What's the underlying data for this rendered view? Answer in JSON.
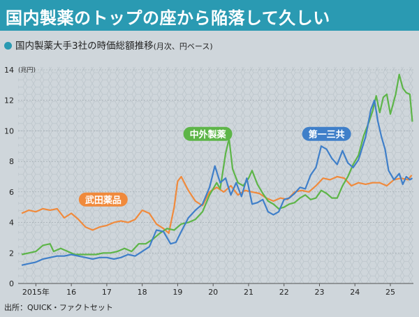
{
  "header": {
    "title": "国内製薬のトップの座から陥落して久しい",
    "subtitle": "国内製薬大手3社の時価総額推移",
    "subtitle_note": "(月次、円ベース)"
  },
  "source": "出所：QUICK・ファクトセット",
  "colors": {
    "accent": "#2a9ab2",
    "takeda": "#f08a3c",
    "chugai": "#5db548",
    "daiichi": "#3f7fc9",
    "label_text": "#ffffff"
  },
  "chart_data": {
    "type": "line",
    "ylabel": "(兆円)",
    "ylim": [
      0,
      14
    ],
    "xlim": [
      2014.5,
      2025.65
    ],
    "y_ticks": [
      0,
      2,
      4,
      6,
      8,
      10,
      12,
      14
    ],
    "x_ticks": [
      {
        "value": 2015,
        "label": "2015年"
      },
      {
        "value": 2016,
        "label": "16"
      },
      {
        "value": 2017,
        "label": "17"
      },
      {
        "value": 2018,
        "label": "18"
      },
      {
        "value": 2019,
        "label": "19"
      },
      {
        "value": 2020,
        "label": "20"
      },
      {
        "value": 2021,
        "label": "21"
      },
      {
        "value": 2022,
        "label": "22"
      },
      {
        "value": 2023,
        "label": "23"
      },
      {
        "value": 2024,
        "label": "24"
      },
      {
        "value": 2025,
        "label": "25"
      }
    ],
    "series": [
      {
        "name": "武田薬品",
        "color": "#f08a3c",
        "label_pos": [
          2016.9,
          5.5
        ],
        "points": [
          [
            2014.6,
            4.6
          ],
          [
            2014.8,
            4.8
          ],
          [
            2015.0,
            4.7
          ],
          [
            2015.2,
            4.9
          ],
          [
            2015.4,
            4.8
          ],
          [
            2015.6,
            4.9
          ],
          [
            2015.8,
            4.3
          ],
          [
            2016.0,
            4.6
          ],
          [
            2016.2,
            4.2
          ],
          [
            2016.4,
            3.7
          ],
          [
            2016.6,
            3.5
          ],
          [
            2016.8,
            3.7
          ],
          [
            2017.0,
            3.8
          ],
          [
            2017.2,
            4.0
          ],
          [
            2017.4,
            4.1
          ],
          [
            2017.6,
            4.0
          ],
          [
            2017.8,
            4.2
          ],
          [
            2018.0,
            4.8
          ],
          [
            2018.2,
            4.6
          ],
          [
            2018.4,
            3.9
          ],
          [
            2018.6,
            3.6
          ],
          [
            2018.75,
            3.3
          ],
          [
            2018.9,
            5.0
          ],
          [
            2019.0,
            6.7
          ],
          [
            2019.1,
            7.0
          ],
          [
            2019.3,
            6.1
          ],
          [
            2019.5,
            5.4
          ],
          [
            2019.7,
            5.1
          ],
          [
            2019.9,
            6.0
          ],
          [
            2020.1,
            6.3
          ],
          [
            2020.3,
            6.0
          ],
          [
            2020.5,
            6.4
          ],
          [
            2020.7,
            5.8
          ],
          [
            2020.9,
            6.1
          ],
          [
            2021.1,
            6.0
          ],
          [
            2021.3,
            5.9
          ],
          [
            2021.5,
            5.6
          ],
          [
            2021.7,
            5.4
          ],
          [
            2021.9,
            5.6
          ],
          [
            2022.1,
            5.5
          ],
          [
            2022.3,
            6.0
          ],
          [
            2022.5,
            6.1
          ],
          [
            2022.7,
            6.0
          ],
          [
            2022.9,
            6.4
          ],
          [
            2023.1,
            6.9
          ],
          [
            2023.3,
            6.8
          ],
          [
            2023.5,
            7.0
          ],
          [
            2023.7,
            6.9
          ],
          [
            2023.9,
            6.4
          ],
          [
            2024.1,
            6.6
          ],
          [
            2024.3,
            6.5
          ],
          [
            2024.5,
            6.6
          ],
          [
            2024.7,
            6.6
          ],
          [
            2024.9,
            6.4
          ],
          [
            2025.1,
            6.8
          ],
          [
            2025.3,
            6.9
          ],
          [
            2025.5,
            6.8
          ],
          [
            2025.6,
            7.1
          ]
        ]
      },
      {
        "name": "中外製薬",
        "color": "#5db548",
        "label_pos": [
          2019.85,
          9.8
        ],
        "points": [
          [
            2014.6,
            1.9
          ],
          [
            2014.8,
            2.0
          ],
          [
            2015.0,
            2.1
          ],
          [
            2015.2,
            2.5
          ],
          [
            2015.4,
            2.6
          ],
          [
            2015.5,
            2.1
          ],
          [
            2015.7,
            2.3
          ],
          [
            2015.9,
            2.1
          ],
          [
            2016.1,
            1.9
          ],
          [
            2016.3,
            1.9
          ],
          [
            2016.5,
            1.9
          ],
          [
            2016.7,
            1.9
          ],
          [
            2016.9,
            2.0
          ],
          [
            2017.1,
            2.0
          ],
          [
            2017.3,
            2.1
          ],
          [
            2017.5,
            2.3
          ],
          [
            2017.7,
            2.1
          ],
          [
            2017.9,
            2.6
          ],
          [
            2018.1,
            2.6
          ],
          [
            2018.3,
            2.9
          ],
          [
            2018.5,
            3.3
          ],
          [
            2018.7,
            3.6
          ],
          [
            2018.9,
            3.5
          ],
          [
            2019.1,
            3.9
          ],
          [
            2019.3,
            4.0
          ],
          [
            2019.5,
            4.2
          ],
          [
            2019.7,
            4.7
          ],
          [
            2019.9,
            5.8
          ],
          [
            2020.1,
            6.6
          ],
          [
            2020.2,
            6.2
          ],
          [
            2020.35,
            8.5
          ],
          [
            2020.45,
            9.5
          ],
          [
            2020.55,
            7.5
          ],
          [
            2020.7,
            6.6
          ],
          [
            2020.85,
            6.4
          ],
          [
            2021.0,
            6.9
          ],
          [
            2021.1,
            7.4
          ],
          [
            2021.25,
            6.5
          ],
          [
            2021.4,
            5.9
          ],
          [
            2021.55,
            5.4
          ],
          [
            2021.7,
            5.2
          ],
          [
            2021.85,
            4.9
          ],
          [
            2022.0,
            5.0
          ],
          [
            2022.15,
            5.2
          ],
          [
            2022.3,
            5.3
          ],
          [
            2022.45,
            5.6
          ],
          [
            2022.6,
            5.8
          ],
          [
            2022.75,
            5.5
          ],
          [
            2022.9,
            5.6
          ],
          [
            2023.05,
            6.1
          ],
          [
            2023.2,
            5.9
          ],
          [
            2023.35,
            5.6
          ],
          [
            2023.5,
            5.6
          ],
          [
            2023.65,
            6.4
          ],
          [
            2023.8,
            7.0
          ],
          [
            2023.95,
            7.8
          ],
          [
            2024.1,
            8.4
          ],
          [
            2024.25,
            9.7
          ],
          [
            2024.4,
            10.6
          ],
          [
            2024.5,
            11.3
          ],
          [
            2024.6,
            12.3
          ],
          [
            2024.7,
            11.2
          ],
          [
            2024.8,
            12.2
          ],
          [
            2024.9,
            12.4
          ],
          [
            2025.0,
            11.1
          ],
          [
            2025.15,
            12.4
          ],
          [
            2025.25,
            13.7
          ],
          [
            2025.35,
            12.8
          ],
          [
            2025.45,
            12.5
          ],
          [
            2025.55,
            12.4
          ],
          [
            2025.62,
            10.6
          ]
        ]
      },
      {
        "name": "第一三共",
        "color": "#3f7fc9",
        "label_pos": [
          2023.2,
          9.8
        ],
        "points": [
          [
            2014.6,
            1.2
          ],
          [
            2014.8,
            1.3
          ],
          [
            2015.0,
            1.4
          ],
          [
            2015.2,
            1.6
          ],
          [
            2015.4,
            1.7
          ],
          [
            2015.6,
            1.8
          ],
          [
            2015.8,
            1.8
          ],
          [
            2016.0,
            1.9
          ],
          [
            2016.2,
            1.8
          ],
          [
            2016.4,
            1.7
          ],
          [
            2016.6,
            1.6
          ],
          [
            2016.8,
            1.7
          ],
          [
            2017.0,
            1.7
          ],
          [
            2017.2,
            1.6
          ],
          [
            2017.4,
            1.7
          ],
          [
            2017.6,
            1.9
          ],
          [
            2017.8,
            1.8
          ],
          [
            2018.0,
            2.1
          ],
          [
            2018.2,
            2.4
          ],
          [
            2018.4,
            3.5
          ],
          [
            2018.6,
            3.4
          ],
          [
            2018.8,
            2.6
          ],
          [
            2018.95,
            2.7
          ],
          [
            2019.1,
            3.4
          ],
          [
            2019.3,
            4.3
          ],
          [
            2019.5,
            4.8
          ],
          [
            2019.7,
            5.2
          ],
          [
            2019.9,
            6.3
          ],
          [
            2020.05,
            7.7
          ],
          [
            2020.2,
            6.6
          ],
          [
            2020.35,
            6.9
          ],
          [
            2020.5,
            5.8
          ],
          [
            2020.65,
            6.6
          ],
          [
            2020.8,
            5.7
          ],
          [
            2020.95,
            6.9
          ],
          [
            2021.1,
            5.2
          ],
          [
            2021.25,
            5.3
          ],
          [
            2021.4,
            5.5
          ],
          [
            2021.55,
            4.7
          ],
          [
            2021.7,
            4.5
          ],
          [
            2021.85,
            4.7
          ],
          [
            2022.0,
            5.5
          ],
          [
            2022.15,
            5.6
          ],
          [
            2022.3,
            5.9
          ],
          [
            2022.45,
            6.3
          ],
          [
            2022.6,
            6.2
          ],
          [
            2022.75,
            7.1
          ],
          [
            2022.9,
            7.6
          ],
          [
            2023.05,
            9.0
          ],
          [
            2023.2,
            8.8
          ],
          [
            2023.35,
            8.2
          ],
          [
            2023.5,
            7.8
          ],
          [
            2023.65,
            8.7
          ],
          [
            2023.8,
            7.9
          ],
          [
            2023.95,
            7.6
          ],
          [
            2024.1,
            8.1
          ],
          [
            2024.3,
            9.6
          ],
          [
            2024.45,
            11.4
          ],
          [
            2024.55,
            12.0
          ],
          [
            2024.65,
            10.6
          ],
          [
            2024.75,
            9.6
          ],
          [
            2024.85,
            8.8
          ],
          [
            2024.95,
            7.4
          ],
          [
            2025.1,
            6.8
          ],
          [
            2025.25,
            7.2
          ],
          [
            2025.35,
            6.5
          ],
          [
            2025.45,
            7.0
          ],
          [
            2025.55,
            6.8
          ],
          [
            2025.62,
            6.9
          ]
        ]
      }
    ]
  }
}
